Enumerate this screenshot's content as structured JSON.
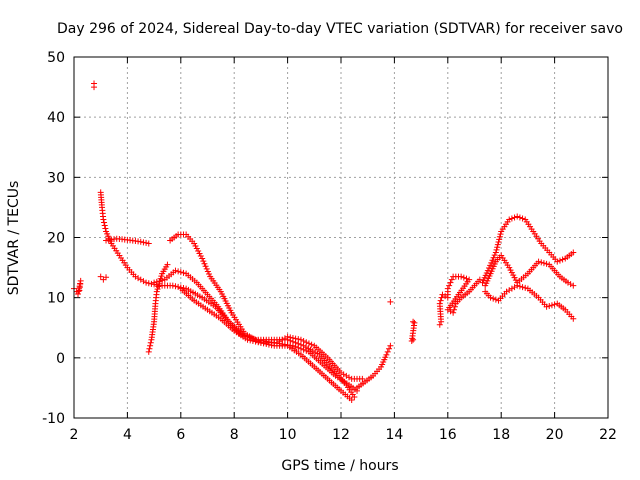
{
  "chart_data": {
    "type": "scatter",
    "title": "Day 296 of 2024, Sidereal Day-to-day VTEC variation (SDTVAR) for receiver savo",
    "xlabel": "GPS time / hours",
    "ylabel": "SDTVAR / TECUs",
    "xlim": [
      2,
      22
    ],
    "ylim": [
      -10,
      50
    ],
    "xticks": [
      "2",
      "4",
      "6",
      "8",
      "10",
      "12",
      "14",
      "16",
      "18",
      "20",
      "22"
    ],
    "yticks": [
      "-10",
      "0",
      "10",
      "20",
      "30",
      "40",
      "50"
    ],
    "grid": true,
    "marker": "+",
    "color": "#ff0000",
    "series": [
      {
        "name": "early-start",
        "points": [
          [
            2.0,
            11.5
          ],
          [
            2.1,
            11.0
          ],
          [
            2.2,
            11.2
          ],
          [
            2.25,
            12.8
          ],
          [
            2.15,
            10.6
          ]
        ]
      },
      {
        "name": "outlier",
        "points": [
          [
            2.75,
            45.6
          ],
          [
            2.75,
            45.0
          ]
        ]
      },
      {
        "name": "pass-a-descending",
        "points": [
          [
            3.0,
            27.5
          ],
          [
            3.05,
            25.0
          ],
          [
            3.1,
            23.0
          ],
          [
            3.2,
            21.0
          ],
          [
            3.4,
            19.0
          ],
          [
            3.7,
            17.0
          ],
          [
            4.0,
            15.0
          ],
          [
            4.3,
            13.5
          ],
          [
            4.7,
            12.5
          ],
          [
            5.2,
            12.0
          ],
          [
            5.7,
            12.0
          ],
          [
            6.2,
            11.5
          ],
          [
            6.8,
            10.0
          ],
          [
            7.3,
            8.5
          ],
          [
            7.8,
            6.0
          ],
          [
            8.3,
            4.0
          ],
          [
            8.8,
            3.0
          ],
          [
            9.5,
            2.5
          ],
          [
            10.2,
            2.0
          ],
          [
            10.8,
            1.0
          ],
          [
            11.3,
            -1.0
          ],
          [
            11.8,
            -3.0
          ],
          [
            12.3,
            -4.5
          ],
          [
            12.6,
            -5.5
          ]
        ]
      },
      {
        "name": "pass-b-plateau",
        "points": [
          [
            3.2,
            19.5
          ],
          [
            3.6,
            19.8
          ],
          [
            4.0,
            19.6
          ],
          [
            4.5,
            19.3
          ],
          [
            4.8,
            19.0
          ]
        ]
      },
      {
        "name": "pass-c-low",
        "points": [
          [
            3.0,
            13.5
          ],
          [
            3.1,
            13.0
          ],
          [
            3.2,
            13.4
          ]
        ]
      },
      {
        "name": "pass-d-rising",
        "points": [
          [
            4.8,
            1.0
          ],
          [
            4.9,
            3.0
          ],
          [
            5.0,
            6.0
          ],
          [
            5.05,
            9.0
          ],
          [
            5.1,
            11.0
          ],
          [
            5.3,
            14.0
          ],
          [
            5.5,
            15.5
          ]
        ]
      },
      {
        "name": "pass-e-hump",
        "points": [
          [
            5.6,
            19.5
          ],
          [
            5.9,
            20.5
          ],
          [
            6.2,
            20.5
          ],
          [
            6.5,
            19.0
          ],
          [
            6.8,
            16.5
          ],
          [
            7.1,
            13.5
          ],
          [
            7.5,
            11.0
          ],
          [
            7.9,
            7.5
          ],
          [
            8.4,
            4.0
          ],
          [
            9.0,
            2.5
          ],
          [
            9.6,
            2.5
          ],
          [
            10.0,
            3.5
          ],
          [
            10.5,
            3.0
          ],
          [
            11.0,
            2.0
          ],
          [
            11.5,
            0.0
          ],
          [
            12.0,
            -2.5
          ],
          [
            12.4,
            -3.5
          ],
          [
            12.8,
            -3.5
          ]
        ]
      },
      {
        "name": "pass-f-mid",
        "points": [
          [
            5.0,
            12.5
          ],
          [
            5.4,
            13.0
          ],
          [
            5.8,
            14.5
          ],
          [
            6.2,
            14.0
          ],
          [
            6.6,
            12.5
          ],
          [
            7.0,
            10.5
          ],
          [
            7.4,
            8.5
          ],
          [
            7.8,
            6.0
          ],
          [
            8.2,
            4.0
          ],
          [
            8.8,
            3.0
          ],
          [
            9.5,
            3.0
          ],
          [
            10.0,
            3.0
          ],
          [
            10.6,
            2.0
          ],
          [
            11.2,
            0.5
          ],
          [
            11.7,
            -2.0
          ],
          [
            12.2,
            -4.5
          ],
          [
            12.5,
            -6.5
          ]
        ]
      },
      {
        "name": "pass-g-bottom",
        "points": [
          [
            6.0,
            11.5
          ],
          [
            6.5,
            9.5
          ],
          [
            7.0,
            8.0
          ],
          [
            7.5,
            6.5
          ],
          [
            8.0,
            4.5
          ],
          [
            8.5,
            3.0
          ],
          [
            9.0,
            2.5
          ],
          [
            9.5,
            2.0
          ],
          [
            10.0,
            2.0
          ],
          [
            10.5,
            0.5
          ],
          [
            11.0,
            -1.5
          ],
          [
            11.5,
            -3.5
          ],
          [
            12.0,
            -5.5
          ],
          [
            12.4,
            -7.0
          ]
        ]
      },
      {
        "name": "pass-h-recovery",
        "points": [
          [
            12.6,
            -5.0
          ],
          [
            12.9,
            -4.0
          ],
          [
            13.2,
            -3.0
          ],
          [
            13.5,
            -1.5
          ],
          [
            13.7,
            0.5
          ],
          [
            13.85,
            2.0
          ]
        ]
      },
      {
        "name": "isolated-14h",
        "points": [
          [
            13.85,
            9.3
          ]
        ]
      },
      {
        "name": "isolated-14.7h",
        "points": [
          [
            14.7,
            6.0
          ],
          [
            14.75,
            5.8
          ],
          [
            14.65,
            2.8
          ],
          [
            14.7,
            3.0
          ]
        ]
      },
      {
        "name": "pass-i-16h",
        "points": [
          [
            15.7,
            5.5
          ],
          [
            15.75,
            6.0
          ],
          [
            15.7,
            9.0
          ],
          [
            15.8,
            10.5
          ],
          [
            16.0,
            10.0
          ],
          [
            16.0,
            11.5
          ],
          [
            16.1,
            12.5
          ],
          [
            16.2,
            13.5
          ],
          [
            16.5,
            13.5
          ],
          [
            16.8,
            13.0
          ],
          [
            16.0,
            8.0
          ],
          [
            16.2,
            7.5
          ],
          [
            16.3,
            9.0
          ],
          [
            16.5,
            10.0
          ],
          [
            16.8,
            11.0
          ],
          [
            17.0,
            12.0
          ],
          [
            17.2,
            13.0
          ]
        ]
      },
      {
        "name": "pass-j-upper",
        "points": [
          [
            17.3,
            12.5
          ],
          [
            17.5,
            14.5
          ],
          [
            17.8,
            17.5
          ],
          [
            18.0,
            21.0
          ],
          [
            18.3,
            23.0
          ],
          [
            18.6,
            23.5
          ],
          [
            18.9,
            23.0
          ],
          [
            19.2,
            21.0
          ],
          [
            19.5,
            19.0
          ],
          [
            19.8,
            17.5
          ],
          [
            20.1,
            16.0
          ],
          [
            20.4,
            16.5
          ],
          [
            20.7,
            17.5
          ]
        ]
      },
      {
        "name": "pass-k-middle",
        "points": [
          [
            17.4,
            12.0
          ],
          [
            17.6,
            14.0
          ],
          [
            17.8,
            16.0
          ],
          [
            18.0,
            17.0
          ],
          [
            18.3,
            15.0
          ],
          [
            18.6,
            12.5
          ],
          [
            19.0,
            14.0
          ],
          [
            19.4,
            16.0
          ],
          [
            19.8,
            15.5
          ],
          [
            20.2,
            13.5
          ],
          [
            20.5,
            12.5
          ],
          [
            20.7,
            12.0
          ]
        ]
      },
      {
        "name": "pass-l-lower",
        "points": [
          [
            17.4,
            11.0
          ],
          [
            17.6,
            10.0
          ],
          [
            17.9,
            9.5
          ],
          [
            18.2,
            11.0
          ],
          [
            18.6,
            12.0
          ],
          [
            19.0,
            11.5
          ],
          [
            19.4,
            10.0
          ],
          [
            19.7,
            8.5
          ],
          [
            20.1,
            9.0
          ],
          [
            20.4,
            8.0
          ],
          [
            20.7,
            6.5
          ]
        ]
      }
    ]
  }
}
